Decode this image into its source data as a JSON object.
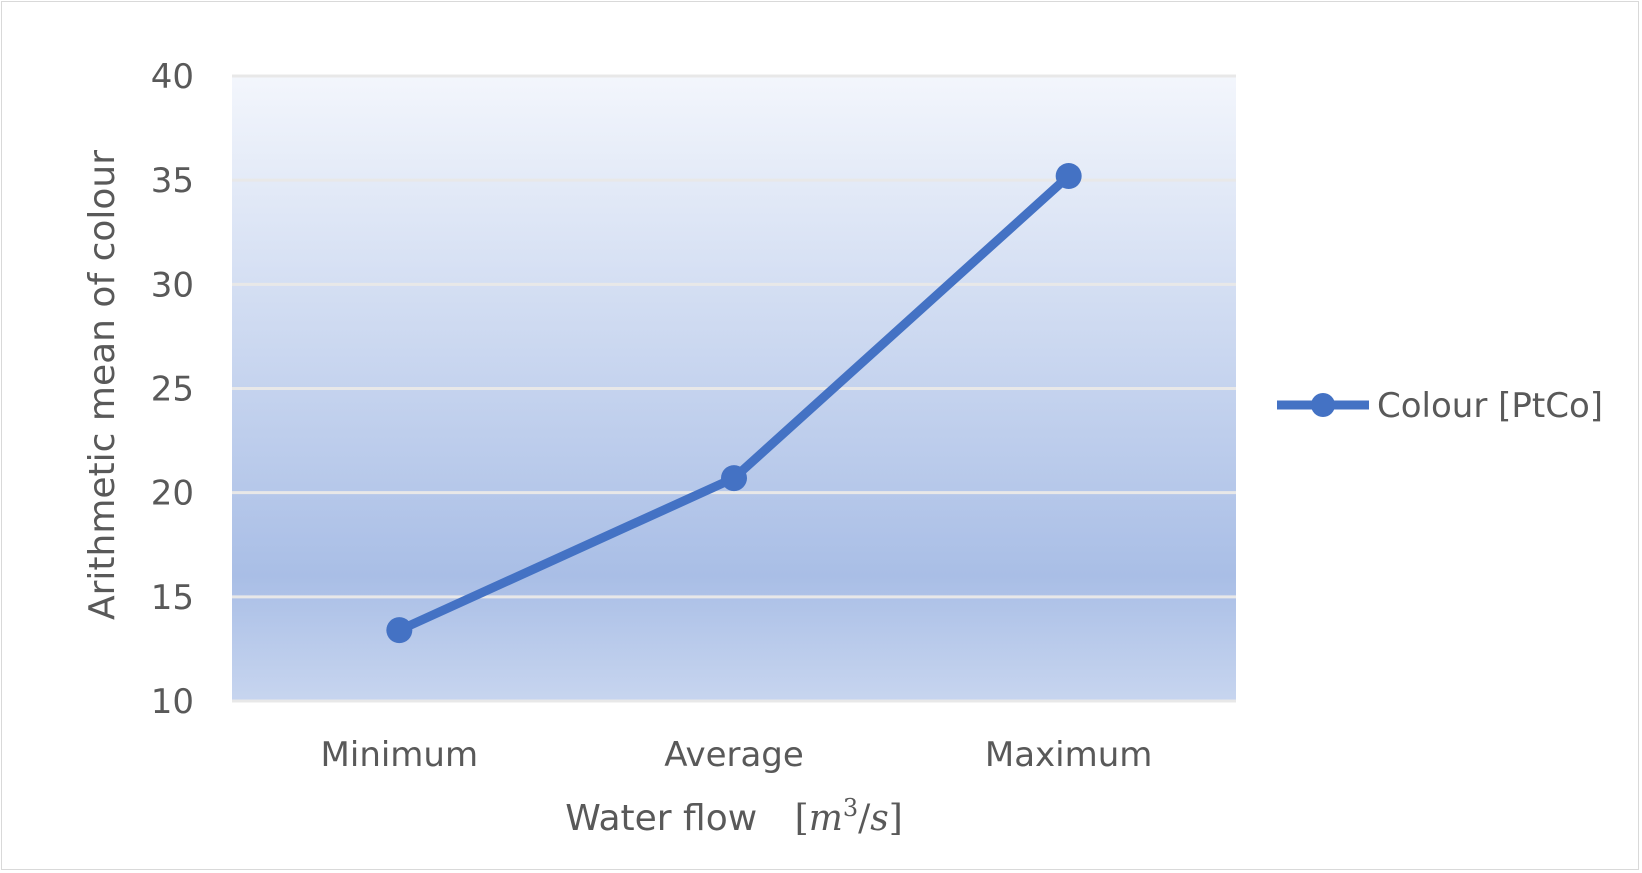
{
  "chart_data": {
    "type": "line",
    "categories": [
      "Minimum",
      "Average",
      "Maximum"
    ],
    "series": [
      {
        "name": "Colour [PtCo]",
        "values": [
          13.4,
          20.7,
          35.2
        ],
        "color": "#4472C4"
      }
    ],
    "xlabel": "Water flow",
    "xlabel_unit": {
      "open": "[",
      "var": "m",
      "exp": "3",
      "slash": "/",
      "var2": "s",
      "close": "]"
    },
    "ylabel": "Arithmetic mean of colour",
    "ylim": [
      10,
      40
    ],
    "yticks": [
      "10",
      "15",
      "20",
      "25",
      "30",
      "35",
      "40"
    ],
    "grid": true,
    "legend_position": "right",
    "plot_background": "blue gradient"
  }
}
